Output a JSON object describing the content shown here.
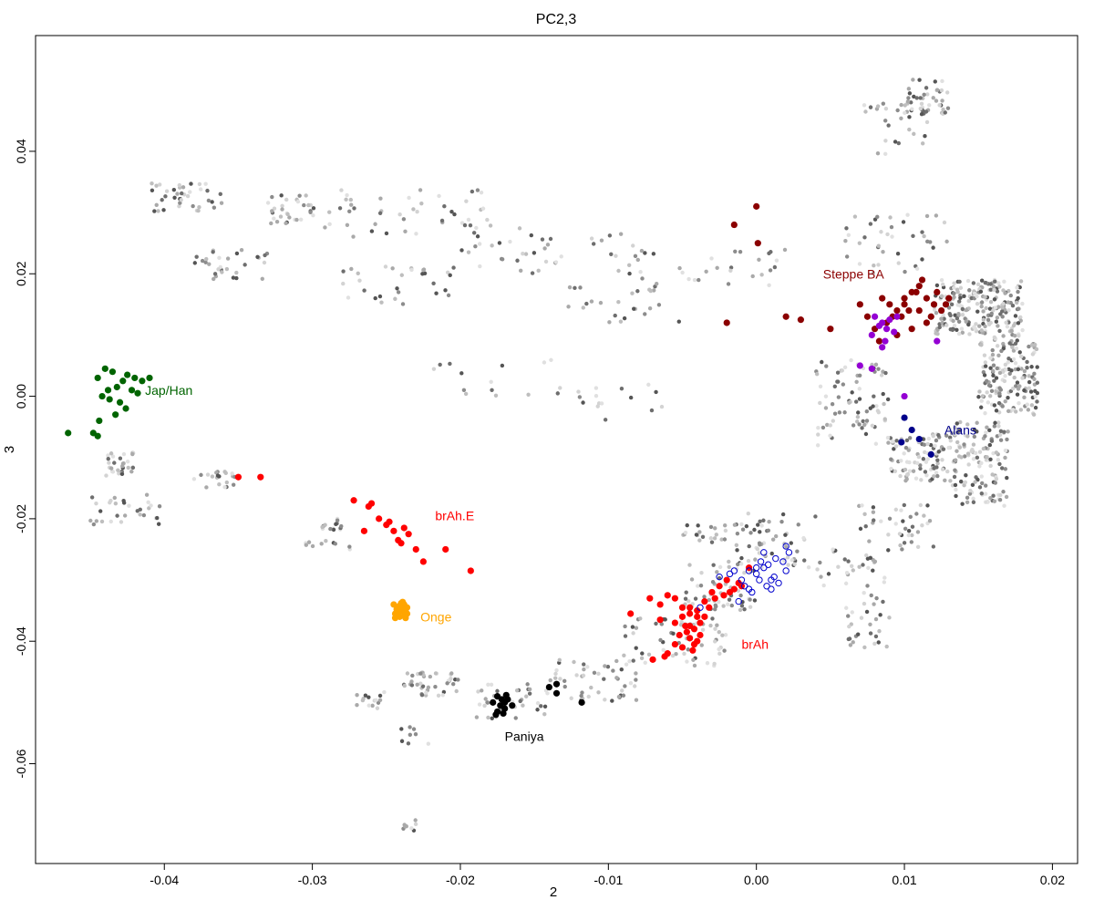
{
  "chart_data": {
    "type": "scatter",
    "title": "PC2,3",
    "xlabel": "2",
    "ylabel": "3",
    "xlim": [
      -0.0487,
      0.0217
    ],
    "ylim": [
      -0.0763,
      0.0589
    ],
    "x_ticks": [
      "-0.04",
      "-0.03",
      "-0.02",
      "-0.01",
      "0.00",
      "0.01",
      "0.02"
    ],
    "x_tick_values": [
      -0.04,
      -0.03,
      -0.02,
      -0.01,
      0.0,
      0.01,
      0.02
    ],
    "y_ticks": [
      "-0.06",
      "-0.04",
      "-0.02",
      "0.00",
      "0.02",
      "0.04"
    ],
    "y_tick_values": [
      -0.06,
      -0.04,
      -0.02,
      0.0,
      0.02,
      0.04
    ],
    "grid": false,
    "legend": "none",
    "background_clusters": [
      {
        "x": [
          -0.044,
          -0.042
        ],
        "y": [
          -0.013,
          -0.009
        ],
        "n": 30
      },
      {
        "x": [
          -0.045,
          -0.04
        ],
        "y": [
          -0.021,
          -0.016
        ],
        "n": 30
      },
      {
        "x": [
          -0.038,
          -0.035
        ],
        "y": [
          -0.015,
          -0.012
        ],
        "n": 20
      },
      {
        "x": [
          -0.041,
          -0.036
        ],
        "y": [
          0.03,
          0.035
        ],
        "n": 40
      },
      {
        "x": [
          -0.038,
          -0.033
        ],
        "y": [
          0.019,
          0.024
        ],
        "n": 30
      },
      {
        "x": [
          -0.033,
          -0.03
        ],
        "y": [
          0.028,
          0.033
        ],
        "n": 30
      },
      {
        "x": [
          -0.03,
          -0.018
        ],
        "y": [
          0.026,
          0.034
        ],
        "n": 50
      },
      {
        "x": [
          -0.028,
          -0.02
        ],
        "y": [
          0.015,
          0.022
        ],
        "n": 30
      },
      {
        "x": [
          -0.02,
          -0.008
        ],
        "y": [
          0.02,
          0.028
        ],
        "n": 40
      },
      {
        "x": [
          -0.013,
          -0.005
        ],
        "y": [
          0.012,
          0.018
        ],
        "n": 25
      },
      {
        "x": [
          -0.008,
          0.002
        ],
        "y": [
          0.018,
          0.024
        ],
        "n": 30
      },
      {
        "x": [
          -0.022,
          -0.013
        ],
        "y": [
          0.0,
          0.006
        ],
        "n": 15
      },
      {
        "x": [
          -0.013,
          -0.006
        ],
        "y": [
          -0.004,
          0.002
        ],
        "n": 15
      },
      {
        "x": [
          0.007,
          0.012
        ],
        "y": [
          0.039,
          0.048
        ],
        "n": 30
      },
      {
        "x": [
          0.01,
          0.013
        ],
        "y": [
          0.046,
          0.052
        ],
        "n": 40
      },
      {
        "x": [
          0.006,
          0.013
        ],
        "y": [
          0.02,
          0.03
        ],
        "n": 40
      },
      {
        "x": [
          0.012,
          0.018
        ],
        "y": [
          0.01,
          0.019
        ],
        "n": 220
      },
      {
        "x": [
          0.015,
          0.019
        ],
        "y": [
          -0.003,
          0.01
        ],
        "n": 160
      },
      {
        "x": [
          0.013,
          0.017
        ],
        "y": [
          -0.018,
          -0.004
        ],
        "n": 140
      },
      {
        "x": [
          0.009,
          0.013
        ],
        "y": [
          -0.014,
          -0.006
        ],
        "n": 90
      },
      {
        "x": [
          0.004,
          0.009
        ],
        "y": [
          -0.008,
          0.006
        ],
        "n": 80
      },
      {
        "x": [
          0.006,
          0.012
        ],
        "y": [
          -0.025,
          -0.017
        ],
        "n": 40
      },
      {
        "x": [
          0.004,
          0.009
        ],
        "y": [
          -0.031,
          -0.025
        ],
        "n": 30
      },
      {
        "x": [
          0.006,
          0.009
        ],
        "y": [
          -0.041,
          -0.032
        ],
        "n": 30
      },
      {
        "x": [
          -0.002,
          0.004
        ],
        "y": [
          -0.028,
          -0.019
        ],
        "n": 60
      },
      {
        "x": [
          -0.005,
          0.0
        ],
        "y": [
          -0.035,
          -0.027
        ],
        "n": 60
      },
      {
        "x": [
          -0.009,
          -0.002
        ],
        "y": [
          -0.044,
          -0.036
        ],
        "n": 60
      },
      {
        "x": [
          -0.014,
          -0.008
        ],
        "y": [
          -0.05,
          -0.043
        ],
        "n": 50
      },
      {
        "x": [
          -0.019,
          -0.014
        ],
        "y": [
          -0.053,
          -0.047
        ],
        "n": 40
      },
      {
        "x": [
          -0.024,
          -0.02
        ],
        "y": [
          -0.049,
          -0.045
        ],
        "n": 40
      },
      {
        "x": [
          -0.027,
          -0.025
        ],
        "y": [
          -0.052,
          -0.048
        ],
        "n": 15
      },
      {
        "x": [
          -0.024,
          -0.022
        ],
        "y": [
          -0.057,
          -0.054
        ],
        "n": 8
      },
      {
        "x": [
          -0.024,
          -0.023
        ],
        "y": [
          -0.071,
          -0.069
        ],
        "n": 8
      },
      {
        "x": [
          -0.03,
          -0.028
        ],
        "y": [
          -0.022,
          -0.02
        ],
        "n": 15
      },
      {
        "x": [
          -0.005,
          -0.002
        ],
        "y": [
          -0.024,
          -0.021
        ],
        "n": 20
      },
      {
        "x": [
          -0.031,
          -0.027
        ],
        "y": [
          -0.025,
          -0.023
        ],
        "n": 10
      }
    ],
    "series": [
      {
        "name": "Jap/Han",
        "color": "#006400",
        "marker": "filled",
        "x": [
          -0.044,
          -0.0435,
          -0.0425,
          -0.042,
          -0.0428,
          -0.0445,
          -0.0432,
          -0.0438,
          -0.0415,
          -0.041,
          -0.0422,
          -0.0442,
          -0.0437,
          -0.043,
          -0.0418,
          -0.0426,
          -0.0444,
          -0.0448,
          -0.0445,
          -0.0433,
          -0.0465
        ],
        "y": [
          0.0045,
          0.004,
          0.0035,
          0.003,
          0.0025,
          0.003,
          0.0015,
          0.001,
          0.0025,
          0.003,
          0.001,
          0.0,
          -0.0005,
          -0.001,
          0.0005,
          -0.002,
          -0.004,
          -0.006,
          -0.0065,
          -0.003,
          -0.006
        ]
      },
      {
        "name": "Steppe BA",
        "color": "#8b0000",
        "marker": "filled",
        "x": [
          0.0,
          0.0001,
          -0.0015,
          0.002,
          0.007,
          0.0075,
          0.0085,
          0.009,
          0.0095,
          0.01,
          0.0105,
          0.011,
          0.0115,
          0.012,
          0.0125,
          0.011,
          0.01,
          0.0118,
          0.0108,
          0.0112,
          0.0122,
          0.0098,
          0.0128,
          0.0115,
          0.0105,
          0.0092,
          0.008,
          0.0088,
          0.0095,
          0.0103,
          0.013,
          0.003,
          -0.002,
          0.005,
          0.0083
        ],
        "y": [
          0.031,
          0.025,
          0.028,
          0.013,
          0.015,
          0.013,
          0.016,
          0.015,
          0.014,
          0.016,
          0.017,
          0.018,
          0.016,
          0.015,
          0.014,
          0.014,
          0.015,
          0.013,
          0.017,
          0.019,
          0.017,
          0.013,
          0.015,
          0.012,
          0.011,
          0.013,
          0.011,
          0.012,
          0.01,
          0.014,
          0.016,
          0.0125,
          0.012,
          0.011,
          0.009
        ]
      },
      {
        "name": "Steppe BA (purple)",
        "color": "#9400d3",
        "marker": "filled",
        "x": [
          0.008,
          0.0085,
          0.0088,
          0.009,
          0.0093,
          0.0083,
          0.0087,
          0.0078,
          0.0078,
          0.0085,
          0.0095,
          0.01,
          0.0122,
          0.007
        ],
        "y": [
          0.013,
          0.012,
          0.011,
          0.0125,
          0.0105,
          0.0115,
          0.009,
          0.01,
          0.0045,
          0.008,
          0.013,
          0.0,
          0.009,
          0.005
        ]
      },
      {
        "name": "Alans",
        "color": "#00008b",
        "marker": "filled",
        "x": [
          0.01,
          0.0105,
          0.0098,
          0.011,
          0.0118
        ],
        "y": [
          -0.0035,
          -0.0055,
          -0.0075,
          -0.007,
          -0.0095
        ]
      },
      {
        "name": "brAh.E",
        "color": "#ff0000",
        "marker": "filled",
        "x": [
          -0.035,
          -0.0335,
          -0.0272,
          -0.026,
          -0.0262,
          -0.0255,
          -0.025,
          -0.0245,
          -0.0238,
          -0.0235,
          -0.024,
          -0.023,
          -0.0225,
          -0.021,
          -0.0193,
          -0.0242,
          -0.0265,
          -0.0248
        ],
        "y": [
          -0.0132,
          -0.0132,
          -0.017,
          -0.0175,
          -0.018,
          -0.02,
          -0.021,
          -0.022,
          -0.0215,
          -0.0225,
          -0.024,
          -0.025,
          -0.027,
          -0.025,
          -0.0285,
          -0.0235,
          -0.022,
          -0.0205
        ]
      },
      {
        "name": "brAh",
        "color": "#ff0000",
        "marker": "filled",
        "x": [
          -0.0085,
          -0.0072,
          -0.0065,
          -0.006,
          -0.0055,
          -0.005,
          -0.0045,
          -0.004,
          -0.0035,
          -0.003,
          -0.0025,
          -0.002,
          -0.0015,
          -0.001,
          -0.0005,
          -0.0065,
          -0.0055,
          -0.0048,
          -0.0042,
          -0.0038,
          -0.0052,
          -0.0045,
          -0.004,
          -0.005,
          -0.006,
          -0.007,
          -0.0043,
          -0.0047,
          -0.0035,
          -0.0028,
          -0.0022,
          -0.0018,
          -0.0012,
          -0.0055,
          -0.0062,
          -0.0045,
          -0.004,
          -0.005,
          -0.0045,
          -0.0038,
          -0.0042,
          -0.0032
        ],
        "y": [
          -0.0355,
          -0.033,
          -0.034,
          -0.0325,
          -0.033,
          -0.0345,
          -0.0355,
          -0.035,
          -0.0335,
          -0.032,
          -0.031,
          -0.03,
          -0.0315,
          -0.031,
          -0.028,
          -0.0365,
          -0.037,
          -0.0375,
          -0.038,
          -0.037,
          -0.039,
          -0.0395,
          -0.04,
          -0.041,
          -0.042,
          -0.043,
          -0.0415,
          -0.0385,
          -0.036,
          -0.033,
          -0.0325,
          -0.032,
          -0.0305,
          -0.0405,
          -0.0425,
          -0.0345,
          -0.036,
          -0.036,
          -0.0375,
          -0.039,
          -0.0405,
          -0.0345
        ]
      },
      {
        "name": "brAh (open)",
        "color": "#0000cd",
        "marker": "open",
        "x": [
          -0.0015,
          -0.001,
          -0.0005,
          0.0,
          0.0005,
          0.001,
          0.0015,
          0.002,
          -0.0012,
          -0.0003,
          0.0003,
          0.0008,
          0.0012,
          -0.0008,
          0.0018,
          0.0022,
          0.0005,
          -0.0018,
          -0.0005,
          0.001,
          0.0002,
          -0.0025,
          0.0,
          0.0013,
          0.0007,
          -0.0038,
          0.002
        ],
        "y": [
          -0.0285,
          -0.03,
          -0.0315,
          -0.029,
          -0.028,
          -0.03,
          -0.0305,
          -0.0285,
          -0.0335,
          -0.032,
          -0.027,
          -0.0275,
          -0.0295,
          -0.031,
          -0.027,
          -0.0255,
          -0.0255,
          -0.029,
          -0.0285,
          -0.0315,
          -0.03,
          -0.0295,
          -0.028,
          -0.0265,
          -0.031,
          -0.0345,
          -0.0245
        ]
      },
      {
        "name": "Onge",
        "color": "#ffa500",
        "marker": "filled",
        "x": [
          -0.0245,
          -0.0242,
          -0.024,
          -0.0238,
          -0.0236,
          -0.0244,
          -0.0241,
          -0.0239,
          -0.0237,
          -0.0243,
          -0.024,
          -0.0238,
          -0.0242,
          -0.0236,
          -0.0244,
          -0.0239,
          -0.0241,
          -0.0237
        ],
        "y": [
          -0.034,
          -0.0345,
          -0.035,
          -0.034,
          -0.0355,
          -0.0355,
          -0.036,
          -0.0345,
          -0.0362,
          -0.0348,
          -0.0338,
          -0.0358,
          -0.0352,
          -0.0345,
          -0.0362,
          -0.0336,
          -0.0342,
          -0.0352
        ]
      },
      {
        "name": "Paniya",
        "color": "#000000",
        "marker": "filled",
        "x": [
          -0.0175,
          -0.0172,
          -0.017,
          -0.0168,
          -0.0178,
          -0.0173,
          -0.017,
          -0.0175,
          -0.0165,
          -0.0176,
          -0.0171,
          -0.0169,
          -0.014,
          -0.0135,
          -0.0135,
          -0.0118
        ],
        "y": [
          -0.049,
          -0.0495,
          -0.05,
          -0.0495,
          -0.05,
          -0.0505,
          -0.051,
          -0.0515,
          -0.0505,
          -0.052,
          -0.0518,
          -0.0488,
          -0.0475,
          -0.047,
          -0.0485,
          -0.05
        ]
      }
    ],
    "annotations": [
      {
        "text": "Jap/Han",
        "x": -0.0413,
        "y": 0.001,
        "color": "#006400"
      },
      {
        "text": "Steppe BA",
        "x": 0.0045,
        "y": 0.02,
        "color": "#8b0000"
      },
      {
        "text": "Alans",
        "x": 0.0127,
        "y": -0.0055,
        "color": "#00008b"
      },
      {
        "text": "brAh.E",
        "x": -0.0217,
        "y": -0.0195,
        "color": "#ff0000"
      },
      {
        "text": "Onge",
        "x": -0.0227,
        "y": -0.036,
        "color": "#ffa500"
      },
      {
        "text": "brAh",
        "x": -0.001,
        "y": -0.0405,
        "color": "#ff0000"
      },
      {
        "text": "Paniya",
        "x": -0.017,
        "y": -0.0555,
        "color": "#000000"
      }
    ]
  }
}
